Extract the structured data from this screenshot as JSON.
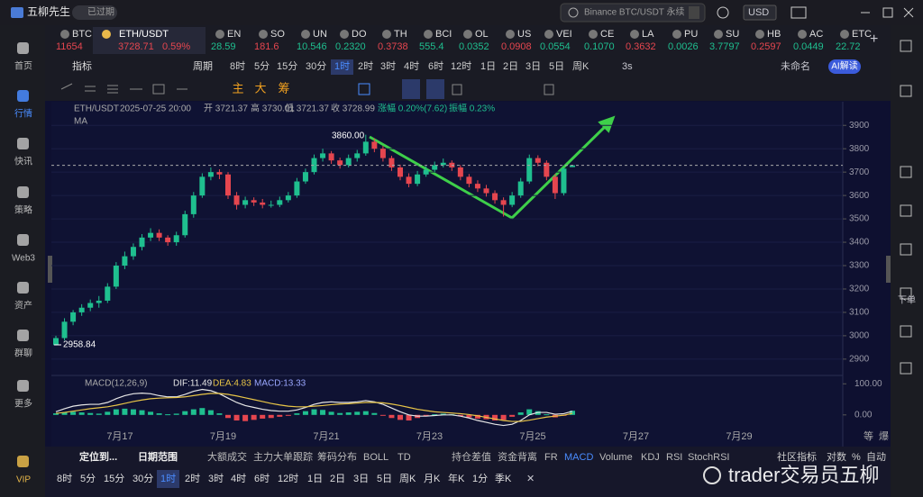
{
  "header": {
    "app_name": "五柳先生",
    "status": "已过期",
    "search": "Binance BTC/USDT 永续",
    "currency": "USD"
  },
  "sidebar": {
    "items": [
      "首页",
      "行情",
      "快讯",
      "策略",
      "Web3",
      "资产",
      "群聊",
      "更多",
      "VIP"
    ],
    "selected": "行情",
    "right": [
      "下单"
    ]
  },
  "tickers": [
    {
      "symbol": "BTC",
      "price": "11654"
    },
    {
      "symbol": "ETH/USDT",
      "price": "3728.71",
      "change": "0.59%"
    },
    {
      "symbol": "EN",
      "price": "28.59"
    },
    {
      "symbol": "SO",
      "price": "181.6"
    },
    {
      "symbol": "UN",
      "price": "10.546"
    },
    {
      "symbol": "DO",
      "price": "0.2320"
    },
    {
      "symbol": "TH",
      "price": "0.3738"
    },
    {
      "symbol": "BCI",
      "price": "555.4"
    },
    {
      "symbol": "OL",
      "price": "0.0352"
    },
    {
      "symbol": "US",
      "price": "0.0908"
    },
    {
      "symbol": "VEI",
      "price": "0.0554"
    },
    {
      "symbol": "CE",
      "price": "0.1070"
    },
    {
      "symbol": "LA",
      "price": "0.3632"
    },
    {
      "symbol": "PU",
      "price": "0.0026"
    },
    {
      "symbol": "SU",
      "price": "3.7797"
    },
    {
      "symbol": "HB",
      "price": "0.2597"
    },
    {
      "symbol": "AC",
      "price": "0.0449"
    },
    {
      "symbol": "ETC",
      "price": "22.72"
    }
  ],
  "toolbar": {
    "indicator": "指标",
    "period": "周期",
    "intervals": [
      "8时",
      "5分",
      "15分",
      "30分",
      "1时",
      "2时",
      "3时",
      "4时",
      "6时",
      "12时",
      "1日",
      "2日",
      "3日",
      "5日",
      "周K"
    ],
    "selected": "1时",
    "refresh": "3s",
    "layout": "未命名",
    "ai": "AI解读"
  },
  "draw_tools": [
    "主",
    "大",
    "筹"
  ],
  "chart_data": [
    {
      "type": "candlestick",
      "title": "ETH/USDT",
      "info": [
        "2025-07-25 20:00",
        "开 3721.37",
        "高 3730.01",
        "低 3721.37",
        "收 3728.99",
        "涨幅 0.20%(7.62)",
        "振幅 0.23%"
      ],
      "ma_label": "MA",
      "up_color": "#1fbf8f",
      "down_color": "#e5464f",
      "ylim": [
        2834,
        4001
      ],
      "yticks": [
        2900,
        3000,
        3100,
        3200,
        3300,
        3400,
        3500,
        3600,
        3700,
        3800,
        3900
      ],
      "grid": true,
      "annotations": [
        "3860.00",
        "2958.84"
      ],
      "x_labels": [
        "7月17",
        "7月19",
        "7月21",
        "7月23",
        "7月25",
        "7月27",
        "7月29"
      ],
      "candles": [
        [
          2960,
          3000,
          2958.84,
          2990
        ],
        [
          2990,
          3075,
          2980,
          3060
        ],
        [
          3060,
          3110,
          3045,
          3100
        ],
        [
          3100,
          3135,
          3085,
          3120
        ],
        [
          3120,
          3155,
          3105,
          3140
        ],
        [
          3140,
          3170,
          3120,
          3150
        ],
        [
          3150,
          3225,
          3140,
          3210
        ],
        [
          3210,
          3315,
          3200,
          3300
        ],
        [
          3300,
          3360,
          3285,
          3340
        ],
        [
          3340,
          3395,
          3325,
          3380
        ],
        [
          3380,
          3435,
          3365,
          3420
        ],
        [
          3420,
          3460,
          3405,
          3440
        ],
        [
          3440,
          3455,
          3405,
          3420
        ],
        [
          3420,
          3430,
          3385,
          3400
        ],
        [
          3400,
          3445,
          3385,
          3430
        ],
        [
          3430,
          3535,
          3420,
          3520
        ],
        [
          3520,
          3615,
          3505,
          3600
        ],
        [
          3600,
          3695,
          3590,
          3680
        ],
        [
          3680,
          3720,
          3665,
          3700
        ],
        [
          3700,
          3712,
          3670,
          3690
        ],
        [
          3690,
          3700,
          3585,
          3600
        ],
        [
          3600,
          3615,
          3540,
          3560
        ],
        [
          3560,
          3595,
          3545,
          3580
        ],
        [
          3580,
          3592,
          3555,
          3570
        ],
        [
          3570,
          3585,
          3545,
          3560
        ],
        [
          3560,
          3578,
          3548,
          3560
        ],
        [
          3560,
          3595,
          3550,
          3580
        ],
        [
          3580,
          3615,
          3570,
          3600
        ],
        [
          3600,
          3675,
          3590,
          3660
        ],
        [
          3660,
          3715,
          3650,
          3700
        ],
        [
          3700,
          3775,
          3690,
          3760
        ],
        [
          3760,
          3800,
          3745,
          3780
        ],
        [
          3780,
          3790,
          3735,
          3750
        ],
        [
          3750,
          3762,
          3715,
          3730
        ],
        [
          3730,
          3775,
          3720,
          3760
        ],
        [
          3760,
          3795,
          3745,
          3780
        ],
        [
          3780,
          3860,
          3770,
          3830
        ],
        [
          3830,
          3845,
          3785,
          3800
        ],
        [
          3800,
          3812,
          3745,
          3760
        ],
        [
          3760,
          3770,
          3705,
          3720
        ],
        [
          3720,
          3732,
          3665,
          3680
        ],
        [
          3680,
          3695,
          3635,
          3650
        ],
        [
          3650,
          3705,
          3640,
          3690
        ],
        [
          3690,
          3725,
          3680,
          3710
        ],
        [
          3710,
          3745,
          3700,
          3730
        ],
        [
          3730,
          3758,
          3720,
          3740
        ],
        [
          3740,
          3750,
          3705,
          3720
        ],
        [
          3720,
          3730,
          3665,
          3680
        ],
        [
          3680,
          3692,
          3635,
          3650
        ],
        [
          3650,
          3665,
          3615,
          3630
        ],
        [
          3630,
          3645,
          3595,
          3610
        ],
        [
          3610,
          3622,
          3565,
          3580
        ],
        [
          3580,
          3592,
          3510,
          3560
        ],
        [
          3560,
          3615,
          3550,
          3600
        ],
        [
          3600,
          3675,
          3590,
          3660
        ],
        [
          3660,
          3775,
          3650,
          3760
        ],
        [
          3760,
          3772,
          3725,
          3740
        ],
        [
          3740,
          3750,
          3665,
          3680
        ],
        [
          3680,
          3692,
          3585,
          3610
        ],
        [
          3610,
          3720,
          3600,
          3715
        ],
        [
          3721.37,
          3730.01,
          3721.37,
          3728.99
        ]
      ]
    },
    {
      "type": "macd",
      "title": "MACD(12,26,9)",
      "legend": [
        "DIF:11.49",
        "DEA:4.83",
        "MACD:13.33"
      ],
      "ylim": [
        -44,
        124
      ],
      "yticks": [
        {
          "value": 0,
          "label": "0.00"
        },
        {
          "value": 100,
          "label": "100.00"
        }
      ],
      "up_color": "#1fbf8f",
      "down_color": "#e5464f",
      "histogram": [
        5,
        8,
        10,
        8,
        6,
        4,
        10,
        18,
        20,
        18,
        15,
        10,
        5,
        2,
        4,
        12,
        18,
        22,
        15,
        5,
        -10,
        -18,
        -20,
        -16,
        -12,
        -10,
        -6,
        -2,
        5,
        12,
        18,
        16,
        10,
        6,
        8,
        10,
        12,
        6,
        -2,
        -10,
        -16,
        -18,
        -10,
        -4,
        2,
        4,
        2,
        -4,
        -8,
        -12,
        -14,
        -18,
        -16,
        -6,
        8,
        18,
        12,
        2,
        -8,
        -2,
        13.33
      ],
      "series": [
        {
          "color": "#e6e6e6",
          "values": [
            10,
            20,
            28,
            32,
            34,
            34,
            40,
            52,
            62,
            68,
            70,
            68,
            62,
            58,
            58,
            66,
            76,
            82,
            78,
            68,
            54,
            40,
            30,
            24,
            18,
            14,
            12,
            12,
            16,
            24,
            34,
            40,
            42,
            40,
            40,
            42,
            46,
            42,
            34,
            22,
            10,
            0,
            -4,
            -4,
            -2,
            0,
            0,
            -4,
            -10,
            -18,
            -24,
            -30,
            -34,
            -30,
            -18,
            0,
            8,
            8,
            2,
            4,
            11.49
          ]
        },
        {
          "color": "#e8c547",
          "values": [
            5,
            8,
            12,
            16,
            20,
            23,
            26,
            31,
            37,
            43,
            48,
            52,
            54,
            55,
            56,
            58,
            62,
            66,
            69,
            69,
            66,
            61,
            55,
            49,
            43,
            37,
            32,
            28,
            26,
            26,
            28,
            30,
            33,
            35,
            36,
            38,
            40,
            40,
            39,
            35,
            30,
            24,
            18,
            14,
            10,
            8,
            6,
            4,
            1,
            -3,
            -8,
            -13,
            -18,
            -21,
            -21,
            -17,
            -12,
            -7,
            -4,
            -1,
            4.83
          ]
        }
      ]
    }
  ],
  "axis_corner": [
    "等",
    "爆"
  ],
  "indicator_bar": {
    "locate": "定位到...",
    "range": "日期范围",
    "items": [
      "大额成交",
      "主力大单跟踪",
      "筹码分布",
      "BOLL",
      "TD",
      "持仓差值",
      "资金背离",
      "FR",
      "MACD",
      "Volume",
      "KDJ",
      "RSI",
      "StochRSI"
    ],
    "selected": "MACD",
    "right": [
      "社区指标",
      "对数",
      "%",
      "自动"
    ]
  },
  "period_bar": {
    "items": [
      "8时",
      "5分",
      "15分",
      "30分",
      "1时",
      "2时",
      "3时",
      "4时",
      "6时",
      "12时",
      "1日",
      "2日",
      "3日",
      "5日",
      "周K",
      "月K",
      "年K",
      "1分",
      "季K"
    ],
    "selected": "1时"
  },
  "watermark": "trader交易员五柳"
}
